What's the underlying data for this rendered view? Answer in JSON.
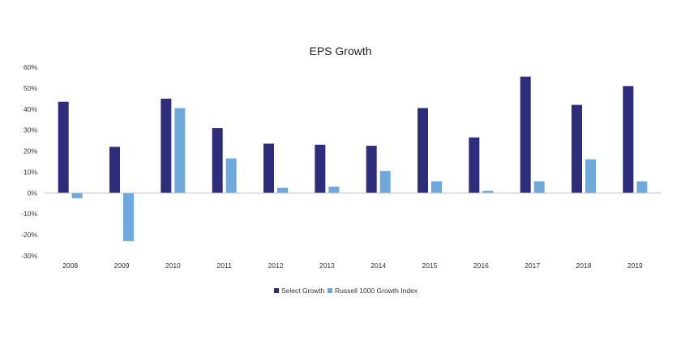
{
  "chart_data": {
    "type": "bar",
    "title": "EPS Growth",
    "xlabel": "",
    "ylabel": "",
    "ylim": [
      -30,
      60
    ],
    "ytick_step": 10,
    "ytick_labels": [
      "60%",
      "50%",
      "40%",
      "30%",
      "20%",
      "10%",
      "0%",
      "-10%",
      "-20%",
      "-30%"
    ],
    "grid": false,
    "legend_position": "bottom-center",
    "categories": [
      "2008",
      "2009",
      "2010",
      "2011",
      "2012",
      "2013",
      "2014",
      "2015",
      "2016",
      "2017",
      "2018",
      "2019"
    ],
    "series": [
      {
        "name": "Select Growth",
        "color": "#2e2d7c",
        "values": [
          43.5,
          22,
          45,
          31,
          23.5,
          23,
          22.5,
          40.5,
          26.5,
          55.5,
          42,
          51
        ]
      },
      {
        "name": "Russell 1000 Growth Index",
        "color": "#6fa9dc",
        "values": [
          -2.5,
          -23,
          40.5,
          16.5,
          2.5,
          3,
          10.5,
          5.5,
          1,
          5.5,
          16,
          5.5
        ]
      }
    ]
  }
}
